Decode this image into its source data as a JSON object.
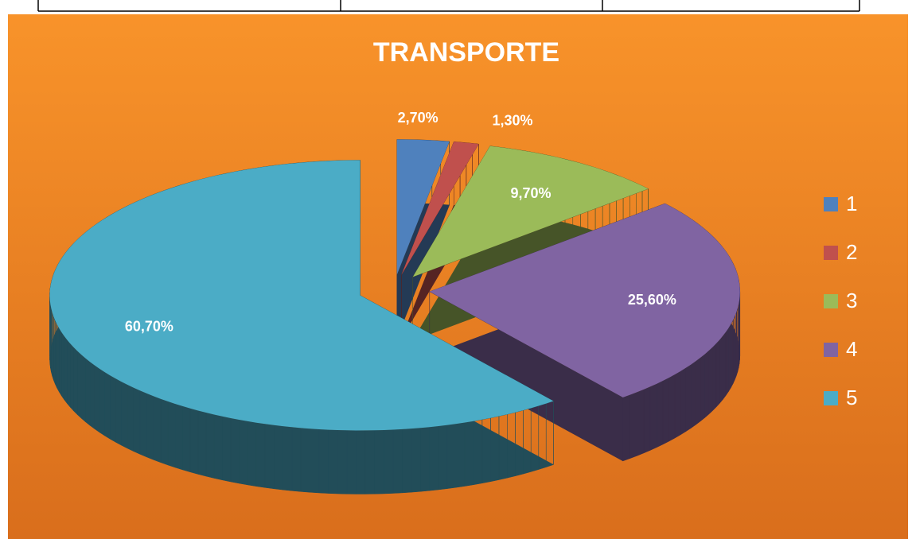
{
  "chart_data": {
    "type": "pie",
    "title": "TRANSPORTE",
    "categories": [
      "1",
      "2",
      "3",
      "4",
      "5"
    ],
    "values": [
      2.7,
      1.3,
      9.7,
      25.6,
      60.7
    ],
    "value_labels": [
      "2,70%",
      "1,30%",
      "9,70%",
      "25,60%",
      "60,70%"
    ],
    "colors": [
      "#4f81bd",
      "#c0504d",
      "#9bbb59",
      "#8064a2",
      "#4bacc6"
    ],
    "legend": "right"
  }
}
